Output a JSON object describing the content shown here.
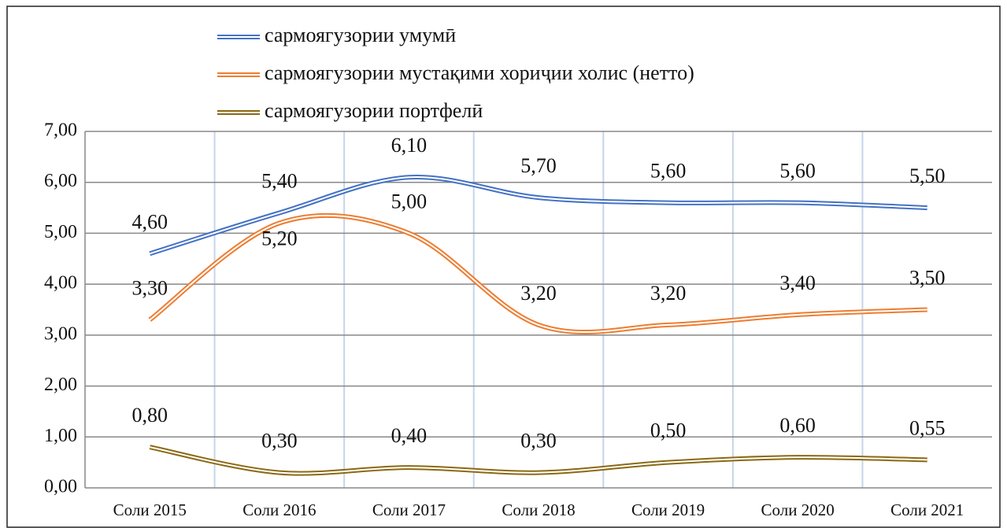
{
  "chart_data": {
    "type": "line",
    "categories": [
      "Соли 2015",
      "Соли 2016",
      "Соли 2017",
      "Соли 2018",
      "Соли 2019",
      "Соли 2020",
      "Соли 2021"
    ],
    "series": [
      {
        "name": "сармоягузории умумӣ",
        "color": "#4472c4",
        "values": [
          4.6,
          5.4,
          6.1,
          5.7,
          5.6,
          5.6,
          5.5
        ],
        "value_labels": [
          "4,60",
          "5,40",
          "6,10",
          "5,70",
          "5,60",
          "5,60",
          "5,50"
        ]
      },
      {
        "name": "сармоягузории мустақими хориҷии холис (нетто)",
        "color": "#ed7d31",
        "values": [
          3.3,
          5.2,
          5.0,
          3.2,
          3.2,
          3.4,
          3.5
        ],
        "value_labels": [
          "3,30",
          "5,20",
          "5,00",
          "3,20",
          "3,20",
          "3,40",
          "3,50"
        ]
      },
      {
        "name": "сармоягузории портфелӣ",
        "color": "#8b6914",
        "values": [
          0.8,
          0.3,
          0.4,
          0.3,
          0.5,
          0.6,
          0.55
        ],
        "value_labels": [
          "0,80",
          "0,30",
          "0,40",
          "0,30",
          "0,50",
          "0,60",
          "0,55"
        ]
      }
    ],
    "ylim": [
      0,
      7
    ],
    "yticks": [
      {
        "value": 0,
        "label": "0,00"
      },
      {
        "value": 1,
        "label": "1,00"
      },
      {
        "value": 2,
        "label": "2,00"
      },
      {
        "value": 3,
        "label": "3,00"
      },
      {
        "value": 4,
        "label": "4,00"
      },
      {
        "value": 5,
        "label": "5,00"
      },
      {
        "value": 6,
        "label": "6,00"
      },
      {
        "value": 7,
        "label": "7,00"
      }
    ],
    "grid": true,
    "legend": "top"
  }
}
